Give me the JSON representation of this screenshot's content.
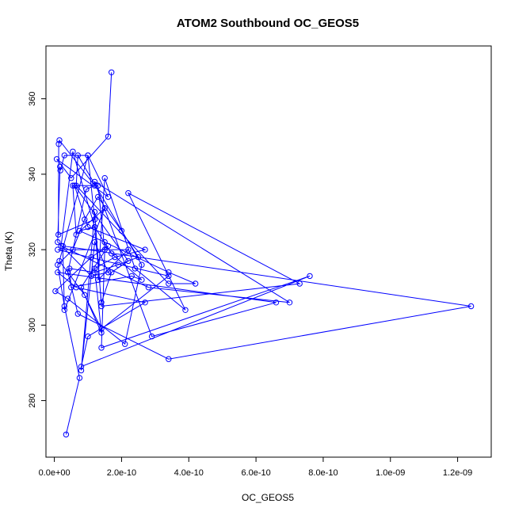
{
  "chart_data": {
    "type": "line",
    "title": "ATOM2 Southbound OC_GEOS5",
    "xlabel": "OC_GEOS5",
    "ylabel": "Theta (K)",
    "xlim": [
      -2.5e-11,
      1.3e-09
    ],
    "ylim": [
      265,
      374
    ],
    "x_ticks": [
      0,
      2e-10,
      4e-10,
      6e-10,
      8e-10,
      1e-09,
      1.2e-09
    ],
    "x_tick_labels": [
      "0.0e+00",
      "2.0e-10",
      "4.0e-10",
      "6.0e-10",
      "8.0e-10",
      "1.0e-09",
      "1.2e-09"
    ],
    "y_ticks": [
      280,
      300,
      320,
      340,
      360
    ],
    "y_tick_labels": [
      "280",
      "300",
      "320",
      "340",
      "360"
    ],
    "series_color": "#0000ff",
    "grid": false,
    "legend": "none",
    "series": [
      {
        "x": [
          3.5e-11,
          7.5e-11,
          3e-11,
          1e-11,
          5.5e-11,
          9e-11,
          1.3e-10,
          2e-10,
          2.5e-10,
          1.9e-10,
          1.2e-10,
          4.5e-11,
          5e-11,
          2.3e-10,
          2.6e-10,
          1.7e-10,
          1.2e-10,
          7.5e-11,
          1.5e-10,
          3.4e-10,
          4.2e-10,
          3.4e-10,
          6.5e-11,
          7e-11,
          2.6e-10,
          2.1e-10,
          4e-11,
          3e-12,
          1.1e-10,
          1.6e-10,
          8e-11,
          1.4e-10,
          1.2e-10,
          1.8e-10,
          2.7e-10,
          1e-10,
          6e-11,
          2.2e-10,
          1.7e-10,
          1.4e-10,
          1.2e-10,
          5.5e-11,
          2e-11,
          2.8e-10,
          7e-10,
          1.2e-10,
          2.9e-10,
          6.6e-10,
          1e-11,
          6.5e-11,
          2.7e-10,
          1e-10,
          8e-11,
          7.6e-10,
          1.4e-10,
          1.5e-10,
          1.3e-10,
          5.5e-11,
          6.5e-11,
          1.5e-10,
          3e-11,
          2.5e-11,
          1.24e-09,
          3.4e-10,
          7e-11,
          4e-11,
          9.5e-11,
          1.2e-10,
          1.5e-11,
          1.3e-11,
          1.2e-11,
          1.2e-10,
          1e-10,
          1.5e-11,
          9e-11,
          1.4e-10,
          3.4e-10,
          1e-11,
          2.2e-10,
          1.3e-10,
          1.5e-10,
          2.4e-10,
          3.9e-10,
          2.2e-10,
          7.3e-10,
          1.4e-10,
          1.2e-10,
          8e-11,
          1.2e-10,
          1.6e-10,
          1.1e-10,
          1e-11,
          1.7e-11,
          1.8e-11,
          3e-11,
          1e-10,
          1.6e-10,
          7e-12,
          5e-11,
          1.6e-10,
          1.7e-10
        ],
        "y": [
          271,
          286,
          305,
          316,
          320,
          328,
          334,
          325,
          318,
          316,
          314,
          315,
          310,
          313,
          312,
          319,
          326,
          325,
          322,
          314,
          311,
          311,
          337,
          345,
          316,
          295,
          307,
          309,
          318,
          321,
          310,
          298,
          315,
          318,
          320,
          326,
          337,
          317,
          314,
          306,
          326,
          346,
          321,
          310,
          306,
          338,
          297,
          306,
          314,
          310,
          306,
          297,
          289,
          313,
          294,
          320,
          337,
          337,
          324,
          331,
          304,
          321,
          305,
          291,
          303,
          314,
          336,
          337,
          349,
          348,
          324,
          328,
          345,
          317,
          308,
          299,
          313,
          320,
          320,
          312,
          339,
          315,
          304,
          335,
          311,
          305,
          330,
          288,
          322,
          314,
          313,
          322,
          342,
          341,
          345,
          345,
          334,
          344,
          339,
          350,
          367
        ]
      }
    ]
  }
}
